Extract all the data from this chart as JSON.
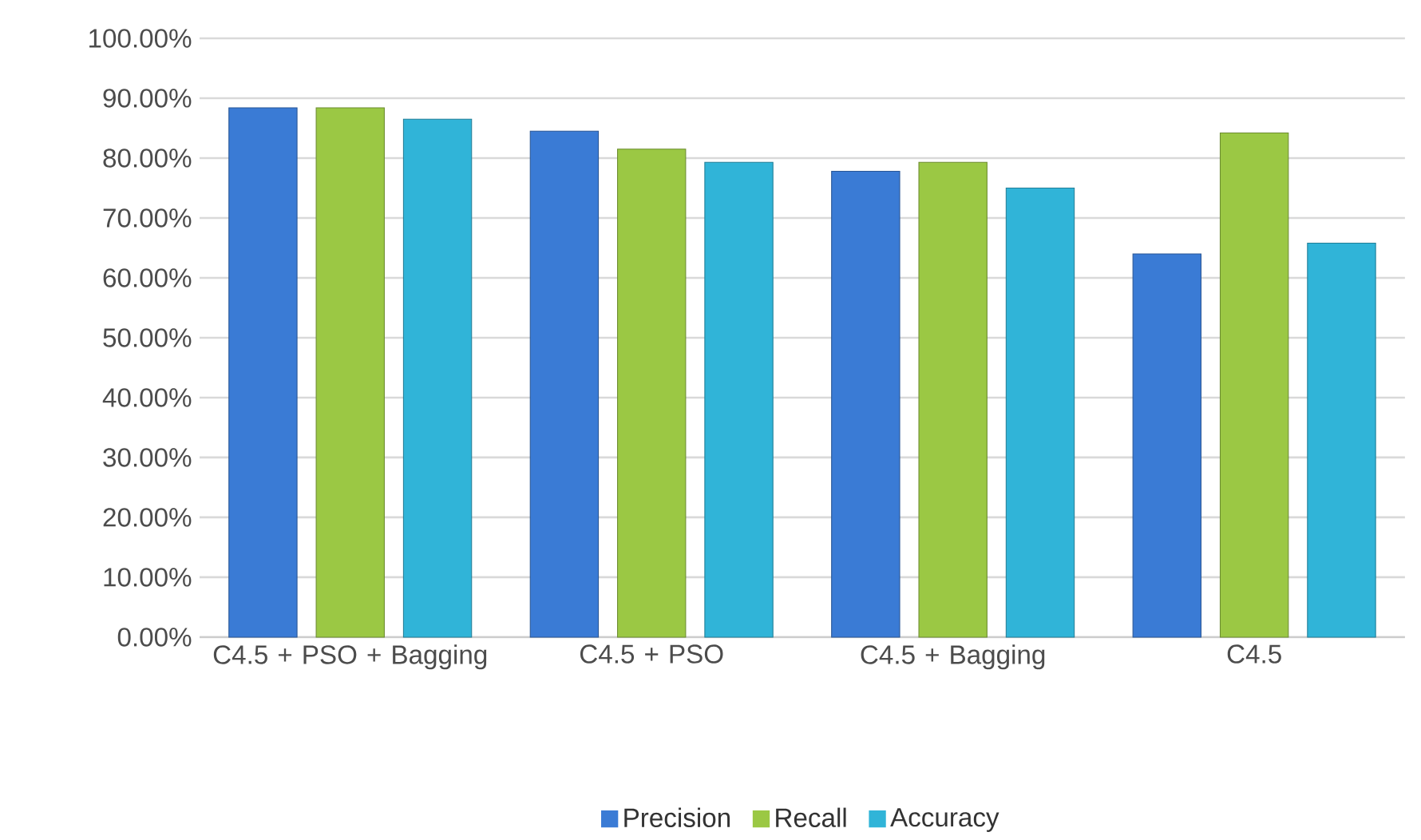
{
  "chart_data": {
    "type": "bar",
    "categories": [
      "C4.5 + PSO + Bagging",
      "C4.5 + PSO",
      "C4.5 + Bagging",
      "C4.5"
    ],
    "series": [
      {
        "name": "Precision",
        "color": "#3a7bd5",
        "values": [
          88.4,
          84.5,
          77.8,
          64.0
        ]
      },
      {
        "name": "Recall",
        "color": "#9bc844",
        "values": [
          88.4,
          81.5,
          79.3,
          84.2
        ]
      },
      {
        "name": "Accuracy",
        "color": "#30b4d8",
        "values": [
          86.5,
          79.3,
          75.0,
          65.8
        ]
      }
    ],
    "ylim": [
      0,
      100
    ],
    "yticks": [
      {
        "value": 0,
        "label": "0.00%"
      },
      {
        "value": 10,
        "label": "10.00%"
      },
      {
        "value": 20,
        "label": "20.00%"
      },
      {
        "value": 30,
        "label": "30.00%"
      },
      {
        "value": 40,
        "label": "40.00%"
      },
      {
        "value": 50,
        "label": "50.00%"
      },
      {
        "value": 60,
        "label": "60.00%"
      },
      {
        "value": 70,
        "label": "70.00%"
      },
      {
        "value": 80,
        "label": "80.00%"
      },
      {
        "value": 90,
        "label": "90.00%"
      },
      {
        "value": 100,
        "label": "100.00%"
      }
    ],
    "grid": "y",
    "legend": "bottom"
  }
}
